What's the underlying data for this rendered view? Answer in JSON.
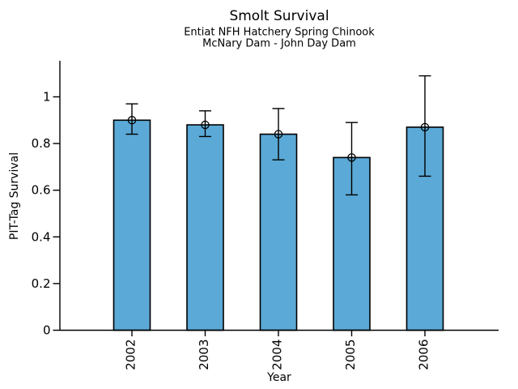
{
  "figure": {
    "background": "#FFFFFF"
  },
  "chart_data": {
    "type": "bar",
    "title": "Smolt Survival",
    "subtitle": [
      "Entiat NFH Hatchery Spring Chinook",
      "McNary Dam - John Day Dam"
    ],
    "xlabel": "Year",
    "ylabel": "PIT-Tag Survival",
    "categories": [
      "2002",
      "2003",
      "2004",
      "2005",
      "2006"
    ],
    "values": [
      0.9,
      0.88,
      0.84,
      0.74,
      0.87
    ],
    "error_low": [
      0.84,
      0.83,
      0.73,
      0.58,
      0.66
    ],
    "error_high": [
      0.97,
      0.94,
      0.95,
      0.89,
      1.09
    ],
    "ylim": [
      0,
      1.15
    ],
    "yticks": [
      0,
      0.2,
      0.4,
      0.6,
      0.8,
      1
    ],
    "ytick_labels": [
      "0",
      "0.2",
      "0.4",
      "0.6",
      "0.8",
      "1"
    ],
    "x_tick_label_rotation_deg": 90,
    "grid": false,
    "legend": "none",
    "marker": "open-circle",
    "colors": {
      "bar_fill": "#5BA9D6",
      "bar_border": "#000000",
      "errorbar": "#000000",
      "axis": "#000000",
      "text": "#000000",
      "background": "#FFFFFF"
    }
  }
}
